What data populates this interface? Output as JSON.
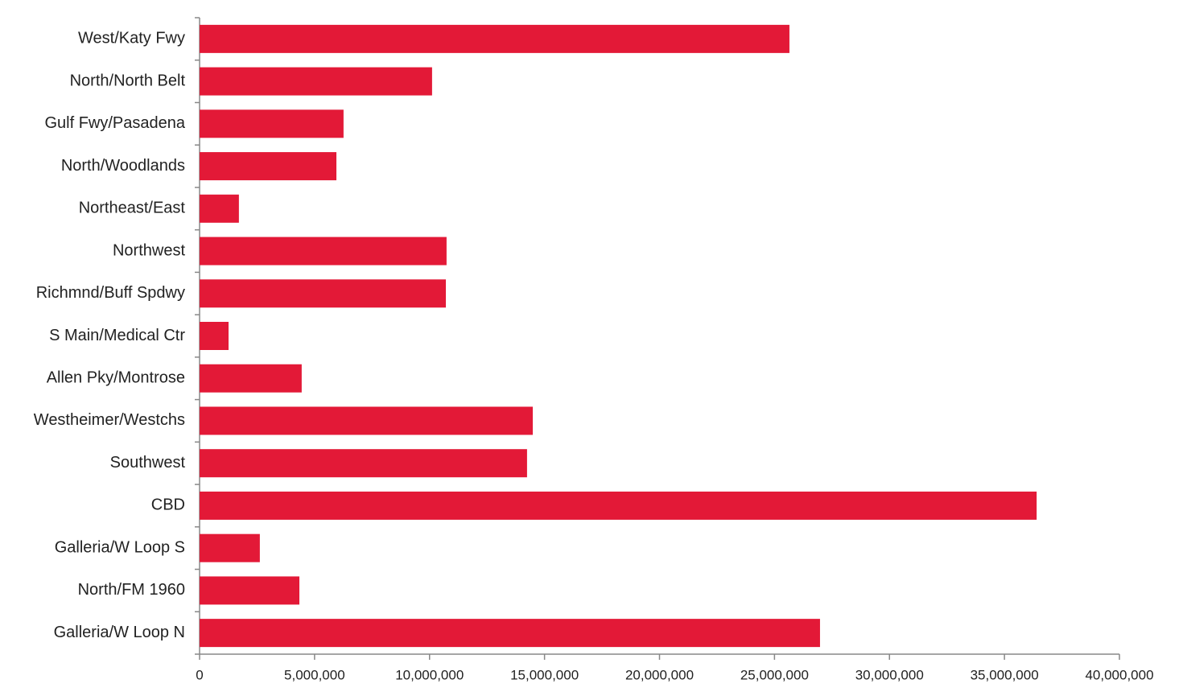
{
  "chart_data": {
    "type": "bar",
    "orientation": "horizontal",
    "color": "#e31937",
    "categories": [
      "West/Katy Fwy",
      "North/North Belt",
      "Gulf Fwy/Pasadena",
      "North/Woodlands",
      "Northeast/East",
      "Northwest",
      "Richmnd/Buff Spdwy",
      "S Main/Medical Ctr",
      "Allen Pky/Montrose",
      "Westheimer/Westchs",
      "Southwest",
      "CBD",
      "Galleria/W Loop S",
      "North/FM 1960",
      "Galleria/W Loop N"
    ],
    "values": [
      25650000,
      10110000,
      6260000,
      5950000,
      1710000,
      10740000,
      10710000,
      1260000,
      4440000,
      14490000,
      14240000,
      36400000,
      2620000,
      4340000,
      26980000
    ],
    "xlim": [
      0,
      40000000
    ],
    "xticks": [
      0,
      {
        "value": 5000000,
        "label": "5,000,000"
      },
      {
        "value": 10000000,
        "label": "10,000,000"
      },
      {
        "value": 15000000,
        "label": "15,000,000"
      },
      {
        "value": 20000000,
        "label": "20,000,000"
      },
      {
        "value": 25000000,
        "label": "25,000,000"
      },
      {
        "value": 30000000,
        "label": "30,000,000"
      },
      {
        "value": 35000000,
        "label": "35,000,000"
      },
      {
        "value": 40000000,
        "label": "40,000,000"
      }
    ],
    "grid": false
  }
}
